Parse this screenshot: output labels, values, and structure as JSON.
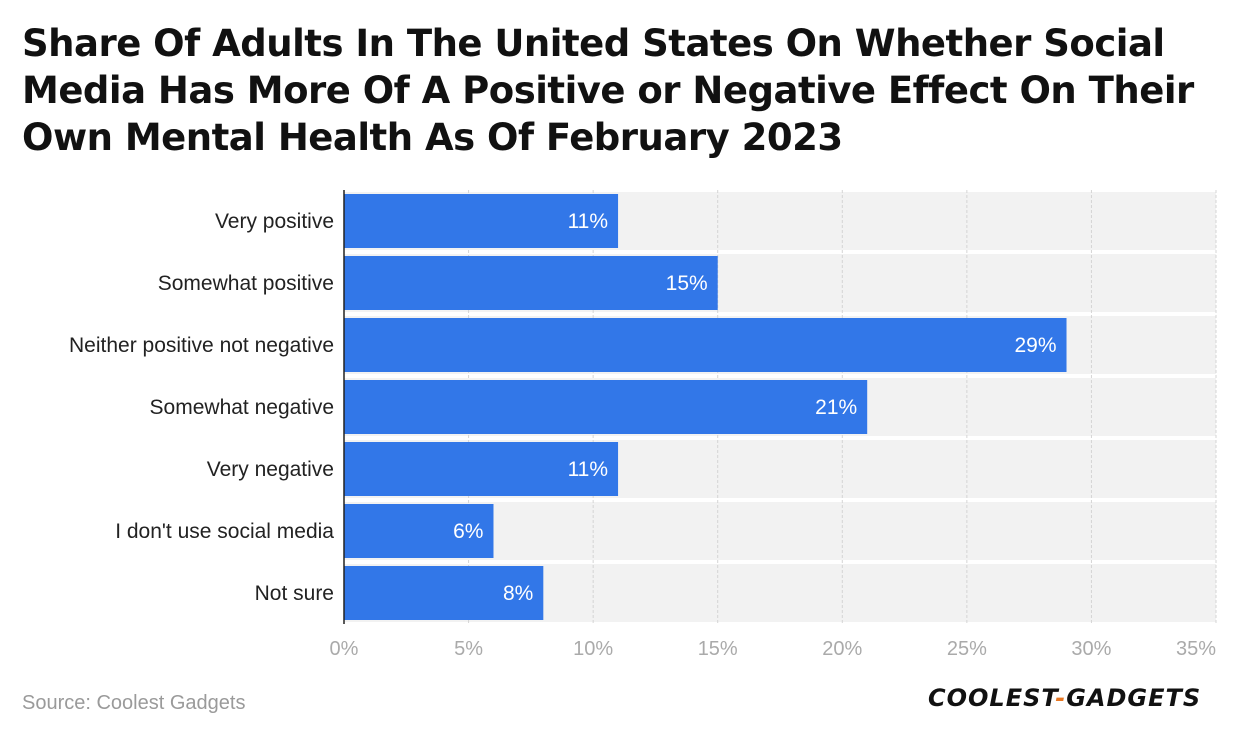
{
  "chart_data": {
    "type": "bar",
    "orientation": "horizontal",
    "title": "Share Of Adults In The United States On Whether Social Media Has More Of A Positive or Negative Effect On Their Own Mental Health As Of February 2023",
    "categories": [
      "Very positive",
      "Somewhat positive",
      "Neither positive not negative",
      "Somewhat negative",
      "Very negative",
      "I don't use social media",
      "Not sure"
    ],
    "values": [
      11,
      15,
      29,
      21,
      11,
      6,
      8
    ],
    "value_labels": [
      "11%",
      "15%",
      "29%",
      "21%",
      "11%",
      "6%",
      "8%"
    ],
    "xlim": [
      0,
      35
    ],
    "xticks": [
      0,
      5,
      10,
      15,
      20,
      25,
      30,
      35
    ],
    "xtick_labels": [
      "0%",
      "5%",
      "10%",
      "15%",
      "20%",
      "25%",
      "30%",
      "35%"
    ],
    "xlabel": "",
    "ylabel": "",
    "grid": true,
    "colors": {
      "bar": "#3277e8",
      "row_band": "#f2f2f2",
      "grid": "#d4d4d4",
      "axis": "#222222",
      "tick_text": "#aaaaaa",
      "category_text": "#222222",
      "value_text": "#ffffff"
    }
  },
  "footer": {
    "source": "Source: Coolest Gadgets",
    "logo_part1": "COOLEST",
    "logo_dash": "-",
    "logo_part2": "GADGETS"
  }
}
